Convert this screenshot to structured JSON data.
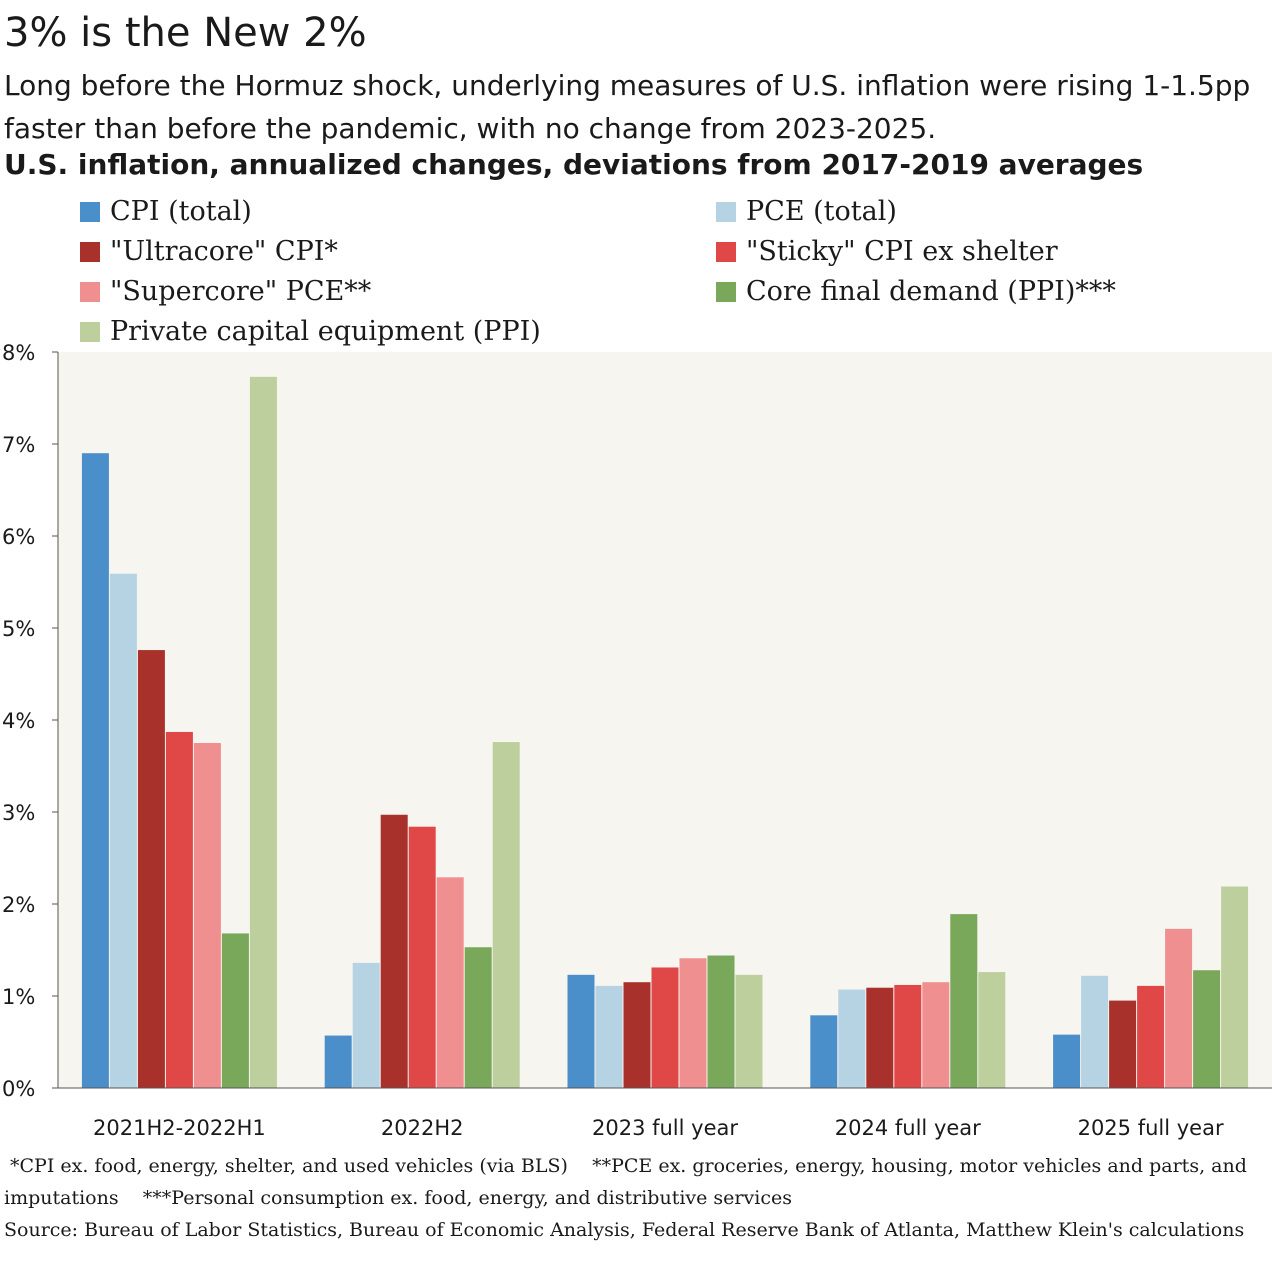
{
  "header": {
    "title": "3% is the New 2%",
    "subtitle": "Long before the Hormuz shock, underlying measures of U.S. inflation were rising 1-1.5pp faster than before the pandemic, with no change from 2023-2025.",
    "chart_title": "U.S. inflation, annualized changes, deviations from 2017-2019 averages"
  },
  "legend": [
    {
      "label": "CPI (total)",
      "color": "#4a8fc9"
    },
    {
      "label": "PCE (total)",
      "color": "#b6d3e3"
    },
    {
      "label": "\"Ultracore\" CPI*",
      "color": "#a8312b"
    },
    {
      "label": "\"Sticky\" CPI ex shelter",
      "color": "#e04848"
    },
    {
      "label": "\"Supercore\" PCE**",
      "color": "#f08f8f"
    },
    {
      "label": "Core final demand (PPI)***",
      "color": "#79a85a"
    },
    {
      "label": "Private capital equipment (PPI)",
      "color": "#bccf9c"
    }
  ],
  "chart_data": {
    "type": "bar",
    "title": "U.S. inflation, annualized changes, deviations from 2017-2019 averages",
    "categories": [
      "2021H2-2022H1",
      "2022H2",
      "2023 full year",
      "2024 full year",
      "2025 full year"
    ],
    "ylim": [
      0,
      8
    ],
    "yticks": [
      "0%",
      "1%",
      "2%",
      "3%",
      "4%",
      "5%",
      "6%",
      "7%",
      "8%"
    ],
    "unit": "%",
    "grid": false,
    "series": [
      {
        "name": "CPI (total)",
        "color": "#4a8fc9",
        "values": [
          6.9,
          0.57,
          1.23,
          0.79,
          0.58
        ]
      },
      {
        "name": "PCE (total)",
        "color": "#b6d3e3",
        "values": [
          5.59,
          1.36,
          1.11,
          1.07,
          1.22
        ]
      },
      {
        "name": "\"Ultracore\" CPI*",
        "color": "#a8312b",
        "values": [
          4.76,
          2.97,
          1.15,
          1.09,
          0.95
        ]
      },
      {
        "name": "\"Sticky\" CPI ex shelter",
        "color": "#e04848",
        "values": [
          3.87,
          2.84,
          1.31,
          1.12,
          1.11
        ]
      },
      {
        "name": "\"Supercore\" PCE**",
        "color": "#f08f8f",
        "values": [
          3.75,
          2.29,
          1.41,
          1.15,
          1.73
        ]
      },
      {
        "name": "Core final demand (PPI)***",
        "color": "#79a85a",
        "values": [
          1.68,
          1.53,
          1.44,
          1.89,
          1.28
        ]
      },
      {
        "name": "Private capital equipment (PPI)",
        "color": "#bccf9c",
        "values": [
          7.73,
          3.76,
          1.23,
          1.26,
          2.19
        ]
      }
    ],
    "plot_background": "#f7f5f0"
  },
  "footnotes": {
    "note1": "*CPI ex. food, energy, shelter, and used vehicles (via BLS)",
    "note2": "**PCE ex. groceries, energy, housing, motor vehicles and parts, and imputations",
    "note3": "***Personal consumption ex. food, energy, and distributive services",
    "source": "Source: Bureau of Labor Statistics, Bureau of Economic Analysis, Federal Reserve Bank of Atlanta, Matthew Klein's calculations"
  }
}
